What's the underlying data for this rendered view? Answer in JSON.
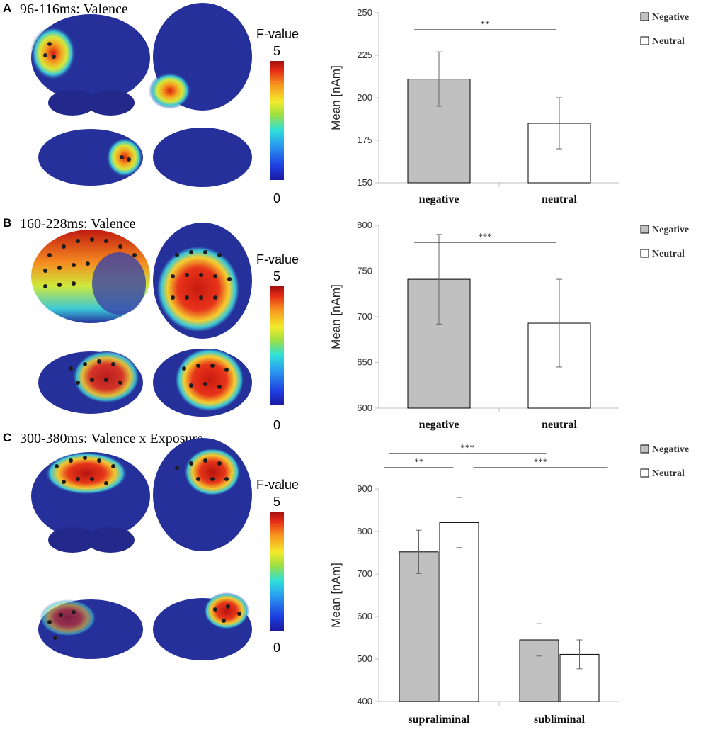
{
  "panels": [
    {
      "letter": "A",
      "title": "96-116ms: Valence",
      "fvalue_label": "F-value",
      "fvalue_max": "5",
      "fvalue_min": "0"
    },
    {
      "letter": "B",
      "title": "160-228ms: Valence",
      "fvalue_label": "F-value",
      "fvalue_max": "5",
      "fvalue_min": "0"
    },
    {
      "letter": "C",
      "title": "300-380ms: Valence x Exposure",
      "fvalue_label": "F-value",
      "fvalue_max": "5",
      "fvalue_min": "0"
    }
  ],
  "colors": {
    "negative": "#c0c0c0",
    "neutral": "#ffffff",
    "brain_base": "#26309a"
  },
  "chart_data": [
    {
      "type": "bar",
      "ylabel": "Mean [nAm]",
      "ylim": [
        150,
        250
      ],
      "yticks": [
        150,
        175,
        200,
        225,
        250
      ],
      "categories": [
        "negative",
        "neutral"
      ],
      "legend": [
        "Negative",
        "Neutral"
      ],
      "legend_position": "top-right",
      "grouped": false,
      "series": [
        {
          "name": "Negative",
          "values": [
            211,
            null
          ],
          "errors": [
            16,
            null
          ]
        },
        {
          "name": "Neutral",
          "values": [
            null,
            185
          ],
          "errors": [
            null,
            15
          ]
        }
      ],
      "significance": [
        {
          "label": "**",
          "from": 0,
          "to": 1
        }
      ]
    },
    {
      "type": "bar",
      "ylabel": "Mean [nAm]",
      "ylim": [
        600,
        800
      ],
      "yticks": [
        600,
        650,
        700,
        750,
        800
      ],
      "categories": [
        "negative",
        "neutral"
      ],
      "legend": [
        "Negative",
        "Neutral"
      ],
      "legend_position": "top-right",
      "grouped": false,
      "series": [
        {
          "name": "Negative",
          "values": [
            741,
            null
          ],
          "errors": [
            49,
            null
          ]
        },
        {
          "name": "Neutral",
          "values": [
            null,
            693
          ],
          "errors": [
            null,
            48
          ]
        }
      ],
      "significance": [
        {
          "label": "***",
          "from": 0,
          "to": 1
        }
      ]
    },
    {
      "type": "bar",
      "ylabel": "Mean [nAm]",
      "ylim": [
        400,
        900
      ],
      "yticks": [
        400,
        500,
        600,
        700,
        800,
        900
      ],
      "categories": [
        "supraliminal",
        "subliminal"
      ],
      "legend": [
        "Negative",
        "Neutral"
      ],
      "legend_position": "top-right",
      "grouped": true,
      "series": [
        {
          "name": "Negative",
          "values": [
            752,
            545
          ],
          "errors": [
            51,
            38
          ]
        },
        {
          "name": "Neutral",
          "values": [
            821,
            511
          ],
          "errors": [
            59,
            34
          ]
        }
      ],
      "significance": [
        {
          "label": "**",
          "from": [
            0,
            0
          ],
          "to": [
            0,
            1
          ]
        },
        {
          "label": "***",
          "from": [
            0,
            0
          ],
          "to": [
            1,
            0
          ]
        },
        {
          "label": "***",
          "from": [
            0,
            1
          ],
          "to": [
            1,
            1
          ]
        }
      ]
    }
  ]
}
